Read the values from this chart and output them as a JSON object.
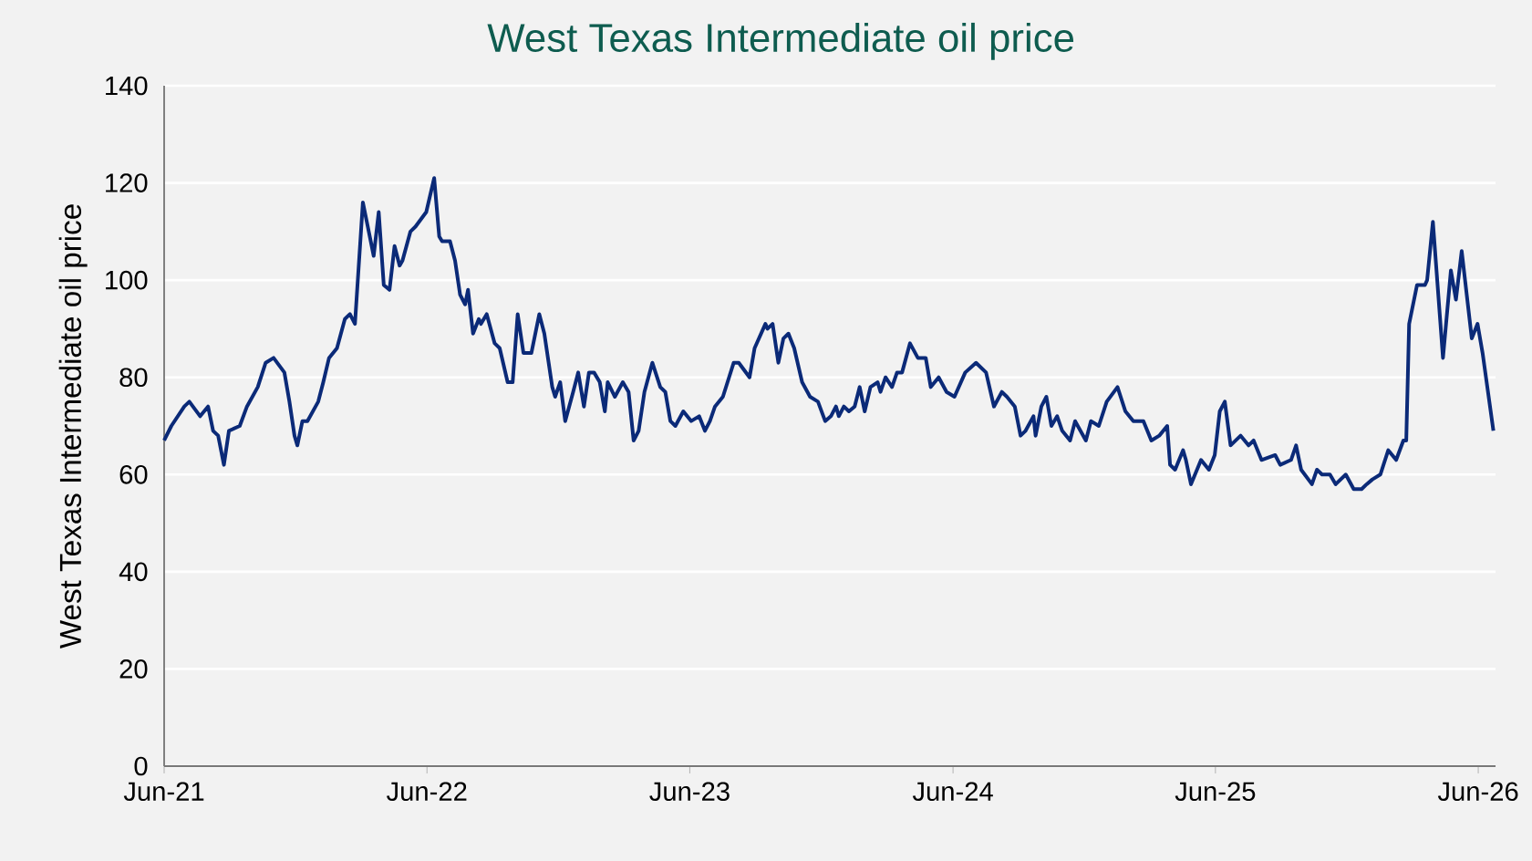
{
  "chart_data": {
    "type": "line",
    "title": "West Texas Intermediate oil price",
    "ylabel": "West Texas Intermediate oil price",
    "color": "#0b2a78",
    "grid": "y",
    "marker": "none",
    "line_style": "solid",
    "xlim": [
      "2021-06-01",
      "2026-06-25"
    ],
    "xticks": [
      {
        "value": "2021-06-01",
        "label": "Jun-21"
      },
      {
        "value": "2022-06-01",
        "label": "Jun-22"
      },
      {
        "value": "2023-06-01",
        "label": "Jun-23"
      },
      {
        "value": "2024-06-01",
        "label": "Jun-24"
      },
      {
        "value": "2025-06-01",
        "label": "Jun-25"
      },
      {
        "value": "2026-06-01",
        "label": "Jun-26"
      }
    ],
    "ylim": [
      0,
      140
    ],
    "yticks": [
      0,
      20,
      40,
      60,
      80,
      100,
      120,
      140
    ],
    "x": [
      "2021-06-01",
      "2021-06-11",
      "2021-06-29",
      "2021-07-06",
      "2021-07-21",
      "2021-08-01",
      "2021-08-08",
      "2021-08-15",
      "2021-08-23",
      "2021-08-30",
      "2021-09-14",
      "2021-09-24",
      "2021-10-09",
      "2021-10-20",
      "2021-10-31",
      "2021-11-15",
      "2021-11-22",
      "2021-11-29",
      "2021-12-03",
      "2021-12-10",
      "2021-12-17",
      "2022-01-01",
      "2022-01-08",
      "2022-01-16",
      "2022-01-27",
      "2022-02-07",
      "2022-02-14",
      "2022-02-21",
      "2022-03-04",
      "2022-03-19",
      "2022-03-26",
      "2022-04-02",
      "2022-04-10",
      "2022-04-17",
      "2022-04-24",
      "2022-04-28",
      "2022-05-09",
      "2022-05-16",
      "2022-05-31",
      "2022-06-11",
      "2022-06-18",
      "2022-06-22",
      "2022-07-03",
      "2022-07-10",
      "2022-07-17",
      "2022-07-24",
      "2022-07-28",
      "2022-08-04",
      "2022-08-12",
      "2022-08-15",
      "2022-08-23",
      "2022-09-03",
      "2022-09-10",
      "2022-09-21",
      "2022-09-28",
      "2022-10-05",
      "2022-10-13",
      "2022-10-24",
      "2022-11-04",
      "2022-11-11",
      "2022-11-22",
      "2022-11-26",
      "2022-12-03",
      "2022-12-10",
      "2022-12-21",
      "2022-12-28",
      "2023-01-05",
      "2023-01-12",
      "2023-01-19",
      "2023-01-27",
      "2023-02-03",
      "2023-02-07",
      "2023-02-17",
      "2023-02-28",
      "2023-03-08",
      "2023-03-15",
      "2023-03-22",
      "2023-03-30",
      "2023-04-10",
      "2023-04-21",
      "2023-04-28",
      "2023-05-05",
      "2023-05-12",
      "2023-05-23",
      "2023-06-03",
      "2023-06-14",
      "2023-06-22",
      "2023-06-29",
      "2023-07-06",
      "2023-07-17",
      "2023-08-01",
      "2023-08-08",
      "2023-08-23",
      "2023-08-30",
      "2023-09-14",
      "2023-09-17",
      "2023-09-24",
      "2023-10-02",
      "2023-10-09",
      "2023-10-16",
      "2023-10-24",
      "2023-11-04",
      "2023-11-15",
      "2023-11-26",
      "2023-12-06",
      "2023-12-14",
      "2023-12-21",
      "2023-12-25",
      "2024-01-01",
      "2024-01-08",
      "2024-01-16",
      "2024-01-23",
      "2024-01-30",
      "2024-02-07",
      "2024-02-17",
      "2024-02-21",
      "2024-02-28",
      "2024-03-08",
      "2024-03-15",
      "2024-03-22",
      "2024-04-02",
      "2024-04-13",
      "2024-04-24",
      "2024-05-01",
      "2024-05-12",
      "2024-05-23",
      "2024-06-03",
      "2024-06-18",
      "2024-07-03",
      "2024-07-17",
      "2024-07-28",
      "2024-08-08",
      "2024-08-15",
      "2024-08-26",
      "2024-09-03",
      "2024-09-10",
      "2024-09-21",
      "2024-09-24",
      "2024-10-02",
      "2024-10-09",
      "2024-10-16",
      "2024-10-24",
      "2024-10-31",
      "2024-11-11",
      "2024-11-18",
      "2024-12-03",
      "2024-12-10",
      "2024-12-21",
      "2025-01-01",
      "2025-01-16",
      "2025-01-27",
      "2025-02-07",
      "2025-02-21",
      "2025-03-04",
      "2025-03-15",
      "2025-03-26",
      "2025-03-30",
      "2025-04-06",
      "2025-04-17",
      "2025-04-21",
      "2025-04-28",
      "2025-05-12",
      "2025-05-23",
      "2025-05-31",
      "2025-06-07",
      "2025-06-14",
      "2025-06-22",
      "2025-07-06",
      "2025-07-17",
      "2025-07-24",
      "2025-08-04",
      "2025-08-23",
      "2025-08-30",
      "2025-09-14",
      "2025-09-21",
      "2025-09-28",
      "2025-10-13",
      "2025-10-20",
      "2025-10-27",
      "2025-11-07",
      "2025-11-15",
      "2025-11-29",
      "2025-12-10",
      "2025-12-21",
      "2025-12-28",
      "2026-01-05",
      "2026-01-16",
      "2026-01-27",
      "2026-02-07",
      "2026-02-17",
      "2026-02-21",
      "2026-02-25",
      "2026-03-08",
      "2026-03-19",
      "2026-03-22",
      "2026-03-30",
      "2026-04-13",
      "2026-04-24",
      "2026-05-01",
      "2026-05-09",
      "2026-05-23",
      "2026-05-31",
      "2026-06-07",
      "2026-06-22"
    ],
    "values": [
      67,
      70,
      74,
      75,
      72,
      74,
      69,
      68,
      62,
      69,
      70,
      74,
      78,
      83,
      84,
      81,
      75,
      68,
      66,
      71,
      71,
      75,
      79,
      84,
      86,
      92,
      93,
      91,
      116,
      105,
      114,
      99,
      98,
      107,
      103,
      104,
      110,
      111,
      114,
      121,
      109,
      108,
      108,
      104,
      97,
      95,
      98,
      89,
      92,
      91,
      93,
      87,
      86,
      79,
      79,
      93,
      85,
      85,
      93,
      89,
      78,
      76,
      79,
      71,
      77,
      81,
      74,
      81,
      81,
      79,
      73,
      79,
      76,
      79,
      77,
      67,
      69,
      77,
      83,
      78,
      77,
      71,
      70,
      73,
      71,
      72,
      69,
      71,
      74,
      76,
      83,
      83,
      80,
      86,
      91,
      90,
      91,
      83,
      88,
      89,
      86,
      79,
      76,
      75,
      71,
      72,
      74,
      72,
      74,
      73,
      74,
      78,
      73,
      78,
      79,
      77,
      80,
      78,
      81,
      81,
      87,
      84,
      84,
      78,
      80,
      77,
      76,
      81,
      83,
      81,
      74,
      77,
      76,
      74,
      68,
      69,
      72,
      68,
      74,
      76,
      70,
      72,
      69,
      67,
      71,
      67,
      71,
      70,
      75,
      78,
      73,
      71,
      71,
      67,
      68,
      70,
      62,
      61,
      65,
      63,
      58,
      63,
      61,
      64,
      73,
      75,
      66,
      68,
      66,
      67,
      63,
      64,
      62,
      63,
      66,
      61,
      58,
      61,
      60,
      60,
      58,
      60,
      57,
      57,
      58,
      59,
      60,
      65,
      63,
      67,
      67,
      91,
      99,
      99,
      100,
      112,
      84,
      102,
      96,
      106,
      88,
      91,
      85,
      69
    ]
  }
}
